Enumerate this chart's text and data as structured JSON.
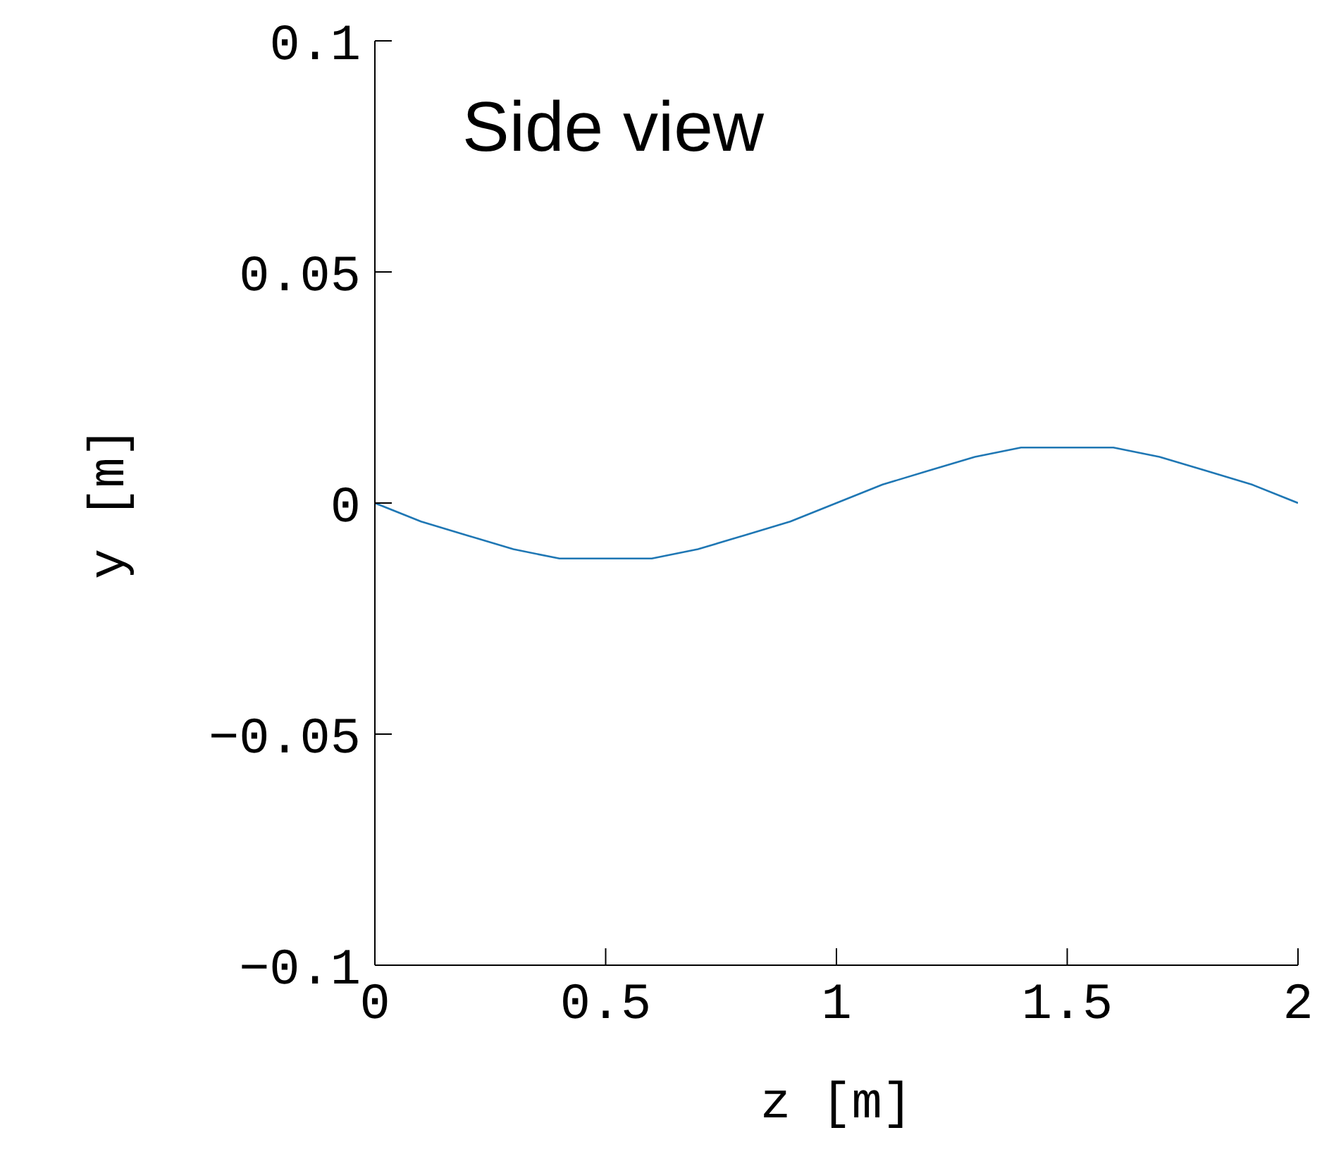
{
  "chart_data": {
    "type": "line",
    "xlabel": "z [m]",
    "ylabel": "y [m]",
    "annotations": [
      "Side view"
    ],
    "x": [
      0,
      0.1,
      0.2,
      0.3,
      0.4,
      0.5,
      0.6,
      0.7,
      0.8,
      0.9,
      1,
      1.1,
      1.2,
      1.3,
      1.4,
      1.5,
      1.6,
      1.7,
      1.8,
      1.9,
      2
    ],
    "series": [
      {
        "color": "#1f77b4",
        "values": [
          0,
          -0.004,
          -0.007,
          -0.01,
          -0.012,
          -0.012,
          -0.012,
          -0.01,
          -0.007,
          -0.004,
          0,
          0.004,
          0.007,
          0.01,
          0.012,
          0.012,
          0.012,
          0.01,
          0.007,
          0.004,
          0
        ]
      }
    ],
    "xlim": [
      0,
      2
    ],
    "xticks": [
      0,
      0.5,
      1,
      1.5,
      2
    ],
    "ylim": [
      -0.1,
      0.1
    ],
    "yticks": [
      -0.1,
      -0.05,
      0,
      0.05,
      0.1
    ],
    "grid": false,
    "legend": false,
    "marker": "none",
    "line_style": "solid"
  }
}
